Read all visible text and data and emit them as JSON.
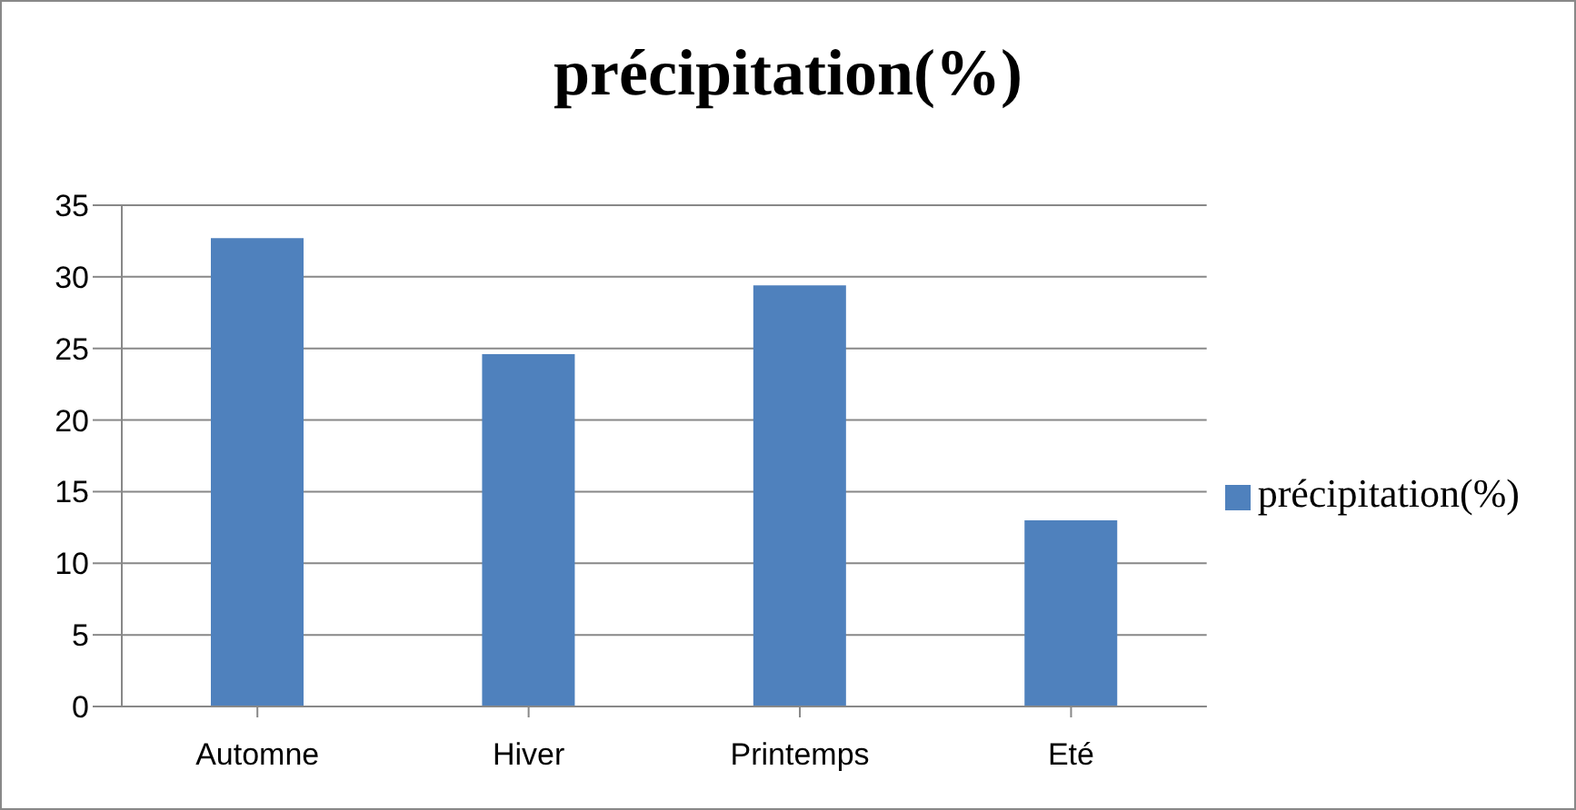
{
  "chart_data": {
    "type": "bar",
    "title": "précipitation(%)",
    "categories": [
      "Automne",
      "Hiver",
      "Printemps",
      "Eté"
    ],
    "series": [
      {
        "name": "précipitation(%)",
        "color": "#4f81bd",
        "values": [
          32.7,
          24.6,
          29.4,
          13.0
        ]
      }
    ],
    "ylim": [
      0,
      35
    ],
    "yticks": [
      0,
      5,
      10,
      15,
      20,
      25,
      30,
      35
    ],
    "grid": "y",
    "legend": "right"
  }
}
